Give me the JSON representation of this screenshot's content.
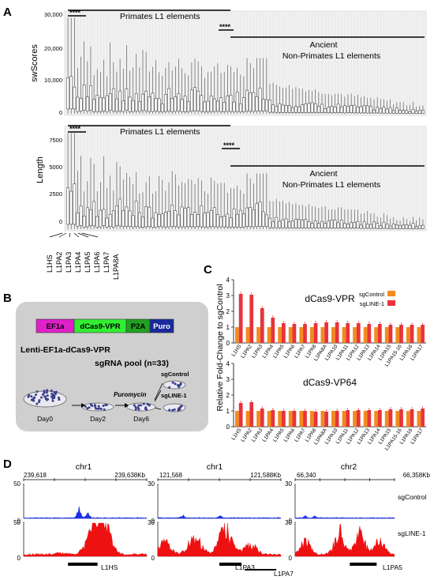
{
  "panel_labels": {
    "a": "A",
    "b": "B",
    "c": "C",
    "d": "D"
  },
  "panel_a": {
    "top": {
      "ylabel": "swScores",
      "yticks": [
        "30,000",
        "20,000",
        "10,000",
        "0"
      ],
      "annotation_primates": "Primates L1 elements",
      "annotation_ancient_1": "Ancient",
      "annotation_ancient_2": "Non-Primates L1 elements",
      "sig1": "****",
      "sig2": "****"
    },
    "bottom": {
      "ylabel": "Length",
      "yticks": [
        "7500",
        "5000",
        "2500",
        "0"
      ],
      "annotation_primates": "Primates L1 elements",
      "annotation_ancient_1": "Ancient",
      "annotation_ancient_2": "Non-Primates L1 elements",
      "sig1": "****",
      "sig2": "****"
    },
    "x_labels": [
      "L1HS",
      "L1PA2",
      "L1PA3",
      "L1PA4",
      "L1PA5",
      "L1PA6",
      "L1PA7",
      "L1PA8A"
    ]
  },
  "panel_b": {
    "construct": {
      "ef1a": "EF1a",
      "dcas9": "dCas9-VPR",
      "p2a": "P2A",
      "puro": "Puro"
    },
    "colors": {
      "ef1a": "#e020c8",
      "dcas9": "#33ee33",
      "p2a": "#22a022",
      "puro": "#1a2a9c"
    },
    "lenti_label": "Lenti-EF1a-dCas9-VPR",
    "pool_label": "sgRNA pool (n=33)",
    "puromycin": "Puromycin",
    "sgcontrol": "sgControl",
    "sgline": "sgLINE-1",
    "days": [
      "Day0",
      "Day2",
      "Day6"
    ]
  },
  "panel_c": {
    "ylabel": "Relative Fold-Change to sgControl",
    "legend": [
      "sgControl",
      "sgLINE-1"
    ],
    "colors": {
      "sgControl": "#f28b1e",
      "sgLINE": "#e8333a"
    }
  },
  "panel_d": {
    "tracks": [
      {
        "chrom": "chr1",
        "start": "239,618",
        "end": "239,638Kb",
        "gene": "L1HS",
        "gene2": ""
      },
      {
        "chrom": "chr1",
        "start": "121,568",
        "end": "121,588Kb",
        "gene": "L1PA3",
        "gene2": "L1PA7"
      },
      {
        "chrom": "chr2",
        "start": "66,340",
        "end": "66,358Kb",
        "gene": "L1PA5",
        "gene2": ""
      }
    ],
    "scales": [
      "50",
      "50",
      "30",
      "30",
      "30",
      "30"
    ],
    "zero": "0",
    "sample_labels": [
      "sgControl",
      "sgLINE-1"
    ],
    "colors": {
      "control": "#1c2ee8",
      "line": "#ee1111"
    }
  },
  "chart_data": [
    {
      "type": "bar",
      "title": "dCas9-VPR",
      "categories": [
        "L1HS",
        "L1PA2",
        "L1PA3",
        "L1PA4",
        "L1PA5",
        "L1PA6",
        "L1PA7",
        "L1PA8",
        "L1PA8A",
        "L1PA10",
        "L1PA11",
        "L1PA12",
        "L1PA13",
        "L1PA14",
        "L1PA15",
        "L1PA15-16",
        "L1PA16",
        "L1PA17"
      ],
      "ylim": [
        0,
        4
      ],
      "yticks": [
        "4",
        "3",
        "2",
        "1",
        "0"
      ],
      "series": [
        {
          "name": "sgControl",
          "values": [
            1,
            1,
            1,
            1,
            1,
            1,
            1,
            1,
            1,
            1,
            1,
            1,
            1,
            1,
            1,
            1,
            1,
            1
          ]
        },
        {
          "name": "sgLINE-1",
          "values": [
            3.1,
            3.05,
            2.2,
            1.6,
            1.25,
            1.2,
            1.2,
            1.25,
            1.3,
            1.3,
            1.25,
            1.25,
            1.2,
            1.2,
            1.15,
            1.15,
            1.15,
            1.15
          ]
        }
      ]
    },
    {
      "type": "bar",
      "title": "dCas9-VP64",
      "categories": [
        "L1HS",
        "L1PA2",
        "L1PA3",
        "L1PA4",
        "L1PA5",
        "L1PA6",
        "L1PA7",
        "L1PA8",
        "L1PA8A",
        "L1PA10",
        "L1PA11",
        "L1PA12",
        "L1PA13",
        "L1PA14",
        "L1PA15",
        "L1PA15-16",
        "L1PA16",
        "L1PA17"
      ],
      "ylim": [
        0,
        4
      ],
      "yticks": [
        "4",
        "3",
        "2",
        "1",
        "0"
      ],
      "series": [
        {
          "name": "sgControl",
          "values": [
            1,
            1,
            1,
            1,
            1,
            1,
            1,
            1,
            1,
            1,
            1,
            1,
            1,
            1,
            1,
            1,
            1,
            1
          ]
        },
        {
          "name": "sgLINE-1",
          "values": [
            1.5,
            1.55,
            1.15,
            1.05,
            1.0,
            1.0,
            1.0,
            0.95,
            0.95,
            1.0,
            1.05,
            1.05,
            1.05,
            1.05,
            1.1,
            1.1,
            1.1,
            1.15
          ]
        }
      ]
    }
  ]
}
